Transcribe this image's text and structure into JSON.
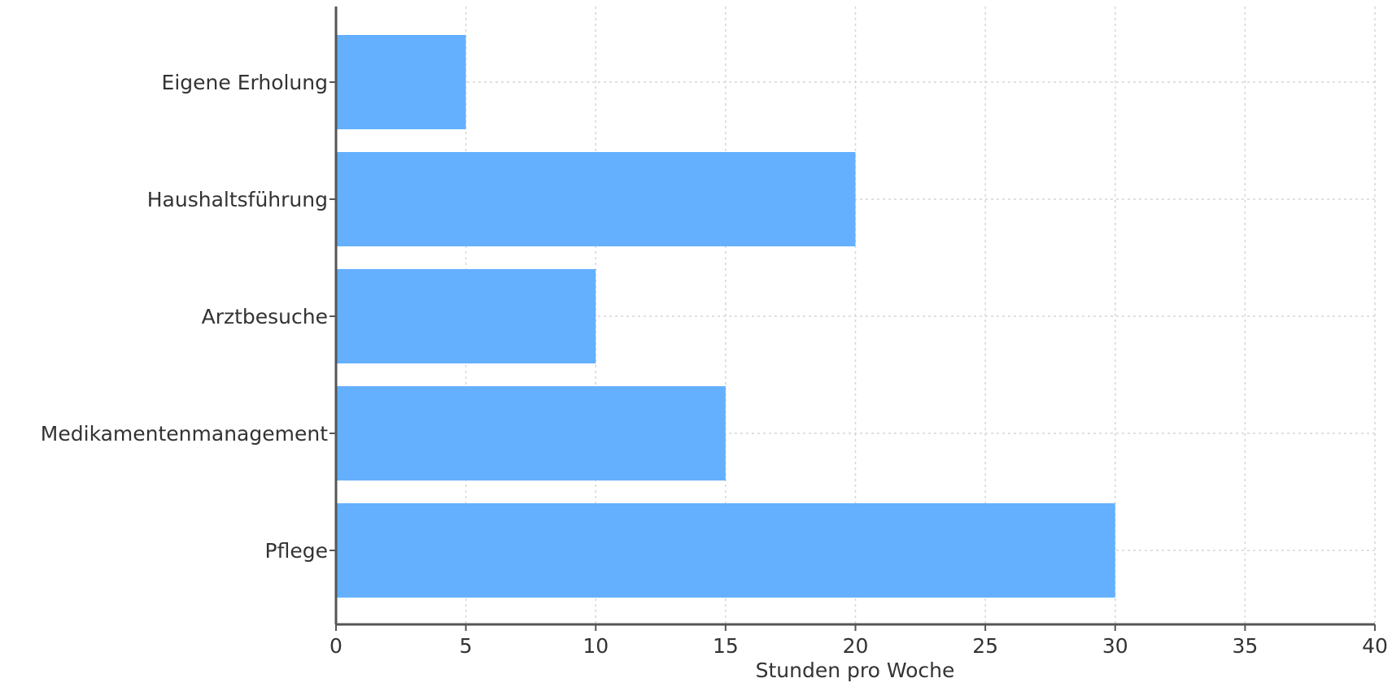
{
  "chart_data": {
    "type": "bar",
    "orientation": "horizontal",
    "title": "",
    "xlabel": "Stunden pro Woche",
    "ylabel": "",
    "categories": [
      "Pflege",
      "Medikamentenmanagement",
      "Arztbesuche",
      "Haushaltsführung",
      "Eigene Erholung"
    ],
    "values": [
      30,
      15,
      10,
      20,
      5
    ],
    "xlim": [
      0,
      40
    ],
    "xticks": [
      "0",
      "5",
      "10",
      "15",
      "20",
      "25",
      "30",
      "35",
      "40"
    ],
    "grid": true,
    "legend": "none",
    "bar_color": "#64b0ff"
  }
}
